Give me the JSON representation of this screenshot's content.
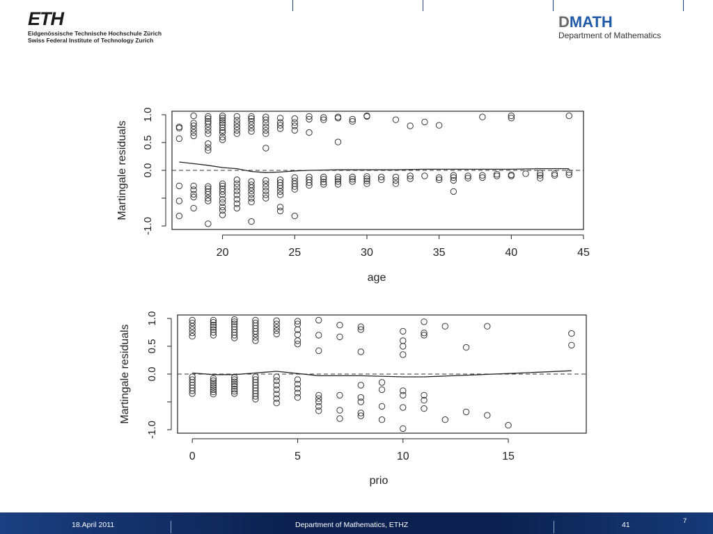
{
  "header": {
    "eth_logo": "ETH",
    "eth_line1": "Eidgenössische Technische Hochschule Zürich",
    "eth_line2": "Swiss Federal Institute of Technology Zurich",
    "dmath_d": "D",
    "dmath_rest": "MATH",
    "dmath_sub": "Department of Mathematics"
  },
  "footer": {
    "date": "18.April 2011",
    "dept": "Department of Mathematics, ETHZ",
    "slide_number": "41",
    "page": "7"
  },
  "chart_data": [
    {
      "type": "scatter",
      "xlabel": "age",
      "ylabel": "Martingale residuals",
      "xlim": [
        16.5,
        45
      ],
      "ylim": [
        -1.0,
        1.0
      ],
      "xticks": [
        20,
        25,
        30,
        35,
        40,
        45
      ],
      "yticks": [
        -1.0,
        -0.5,
        0.0,
        0.5,
        1.0
      ],
      "ytick_labels": [
        "-1.0",
        "",
        "0.0",
        "0.5",
        "1.0"
      ],
      "grid": false,
      "reference_line": {
        "y": 0,
        "style": "dashed"
      },
      "smooth_line": [
        [
          17,
          0.15
        ],
        [
          18,
          0.12
        ],
        [
          19,
          0.09
        ],
        [
          20,
          0.05
        ],
        [
          21,
          0.03
        ],
        [
          22,
          -0.02
        ],
        [
          23,
          -0.04
        ],
        [
          24,
          -0.03
        ],
        [
          25,
          -0.01
        ],
        [
          26,
          0.0
        ],
        [
          28,
          0.01
        ],
        [
          30,
          0.01
        ],
        [
          32,
          0.01
        ],
        [
          34,
          0.02
        ],
        [
          36,
          0.02
        ],
        [
          38,
          0.02
        ],
        [
          40,
          0.02
        ],
        [
          42,
          0.03
        ],
        [
          44,
          0.03
        ]
      ],
      "points": [
        [
          17,
          0.78
        ],
        [
          17,
          0.76
        ],
        [
          17,
          0.57
        ],
        [
          17,
          -0.28
        ],
        [
          17,
          -0.55
        ],
        [
          17,
          -0.82
        ],
        [
          18,
          0.98
        ],
        [
          18,
          0.85
        ],
        [
          18,
          0.8
        ],
        [
          18,
          0.74
        ],
        [
          18,
          0.68
        ],
        [
          18,
          0.62
        ],
        [
          18,
          -0.28
        ],
        [
          18,
          -0.35
        ],
        [
          18,
          -0.43
        ],
        [
          18,
          -0.48
        ],
        [
          18,
          -0.68
        ],
        [
          19,
          0.97
        ],
        [
          19,
          0.93
        ],
        [
          19,
          0.88
        ],
        [
          19,
          0.84
        ],
        [
          19,
          0.78
        ],
        [
          19,
          0.72
        ],
        [
          19,
          0.66
        ],
        [
          19,
          0.48
        ],
        [
          19,
          0.41
        ],
        [
          19,
          0.36
        ],
        [
          19,
          -0.29
        ],
        [
          19,
          -0.33
        ],
        [
          19,
          -0.38
        ],
        [
          19,
          -0.43
        ],
        [
          19,
          -0.5
        ],
        [
          19,
          -0.55
        ],
        [
          19,
          -0.96
        ],
        [
          20,
          0.98
        ],
        [
          20,
          0.94
        ],
        [
          20,
          0.9
        ],
        [
          20,
          0.86
        ],
        [
          20,
          0.82
        ],
        [
          20,
          0.77
        ],
        [
          20,
          0.72
        ],
        [
          20,
          0.68
        ],
        [
          20,
          0.6
        ],
        [
          20,
          0.55
        ],
        [
          20,
          -0.24
        ],
        [
          20,
          -0.28
        ],
        [
          20,
          -0.33
        ],
        [
          20,
          -0.38
        ],
        [
          20,
          -0.44
        ],
        [
          20,
          -0.52
        ],
        [
          20,
          -0.58
        ],
        [
          20,
          -0.66
        ],
        [
          20,
          -0.72
        ],
        [
          20,
          -0.8
        ],
        [
          21,
          0.97
        ],
        [
          21,
          0.9
        ],
        [
          21,
          0.84
        ],
        [
          21,
          0.78
        ],
        [
          21,
          0.72
        ],
        [
          21,
          0.66
        ],
        [
          21,
          -0.17
        ],
        [
          21,
          -0.24
        ],
        [
          21,
          -0.3
        ],
        [
          21,
          -0.37
        ],
        [
          21,
          -0.44
        ],
        [
          21,
          -0.52
        ],
        [
          21,
          -0.6
        ],
        [
          21,
          -0.68
        ],
        [
          22,
          0.97
        ],
        [
          22,
          0.93
        ],
        [
          22,
          0.88
        ],
        [
          22,
          0.82
        ],
        [
          22,
          0.76
        ],
        [
          22,
          0.7
        ],
        [
          22,
          -0.2
        ],
        [
          22,
          -0.26
        ],
        [
          22,
          -0.31
        ],
        [
          22,
          -0.37
        ],
        [
          22,
          -0.43
        ],
        [
          22,
          -0.5
        ],
        [
          22,
          -0.57
        ],
        [
          22,
          -0.92
        ],
        [
          23,
          0.96
        ],
        [
          23,
          0.91
        ],
        [
          23,
          0.85
        ],
        [
          23,
          0.78
        ],
        [
          23,
          0.72
        ],
        [
          23,
          0.66
        ],
        [
          23,
          0.4
        ],
        [
          23,
          -0.18
        ],
        [
          23,
          -0.24
        ],
        [
          23,
          -0.3
        ],
        [
          23,
          -0.37
        ],
        [
          23,
          -0.44
        ],
        [
          23,
          -0.5
        ],
        [
          24,
          0.94
        ],
        [
          24,
          0.86
        ],
        [
          24,
          0.81
        ],
        [
          24,
          0.75
        ],
        [
          24,
          -0.17
        ],
        [
          24,
          -0.22
        ],
        [
          24,
          -0.27
        ],
        [
          24,
          -0.32
        ],
        [
          24,
          -0.38
        ],
        [
          24,
          -0.44
        ],
        [
          24,
          -0.66
        ],
        [
          24,
          -0.73
        ],
        [
          25,
          0.93
        ],
        [
          25,
          0.86
        ],
        [
          25,
          0.8
        ],
        [
          25,
          0.72
        ],
        [
          25,
          -0.13
        ],
        [
          25,
          -0.19
        ],
        [
          25,
          -0.24
        ],
        [
          25,
          -0.29
        ],
        [
          25,
          -0.34
        ],
        [
          25,
          -0.82
        ],
        [
          26,
          0.97
        ],
        [
          26,
          0.92
        ],
        [
          26,
          0.68
        ],
        [
          26,
          -0.12
        ],
        [
          26,
          -0.17
        ],
        [
          26,
          -0.22
        ],
        [
          26,
          -0.27
        ],
        [
          27,
          0.95
        ],
        [
          27,
          0.91
        ],
        [
          27,
          -0.12
        ],
        [
          27,
          -0.16
        ],
        [
          27,
          -0.21
        ],
        [
          27,
          -0.25
        ],
        [
          28,
          0.96
        ],
        [
          28,
          0.94
        ],
        [
          28,
          0.51
        ],
        [
          28,
          -0.12
        ],
        [
          28,
          -0.16
        ],
        [
          28,
          -0.2
        ],
        [
          28,
          -0.25
        ],
        [
          29,
          0.92
        ],
        [
          29,
          0.88
        ],
        [
          29,
          -0.12
        ],
        [
          29,
          -0.16
        ],
        [
          29,
          -0.2
        ],
        [
          30,
          0.98
        ],
        [
          30,
          0.97
        ],
        [
          30,
          -0.11
        ],
        [
          30,
          -0.15
        ],
        [
          30,
          -0.19
        ],
        [
          30,
          -0.24
        ],
        [
          31,
          -0.12
        ],
        [
          31,
          -0.17
        ],
        [
          32,
          0.91
        ],
        [
          32,
          -0.12
        ],
        [
          32,
          -0.18
        ],
        [
          32,
          -0.24
        ],
        [
          33,
          0.8
        ],
        [
          33,
          -0.1
        ],
        [
          33,
          -0.15
        ],
        [
          34,
          0.87
        ],
        [
          34,
          -0.1
        ],
        [
          35,
          0.81
        ],
        [
          35,
          -0.13
        ],
        [
          35,
          -0.17
        ],
        [
          36,
          -0.09
        ],
        [
          36,
          -0.13
        ],
        [
          36,
          -0.18
        ],
        [
          36,
          -0.38
        ],
        [
          37,
          -0.1
        ],
        [
          37,
          -0.14
        ],
        [
          38,
          0.96
        ],
        [
          38,
          -0.09
        ],
        [
          38,
          -0.13
        ],
        [
          39,
          -0.07
        ],
        [
          39,
          -0.1
        ],
        [
          40,
          0.98
        ],
        [
          40,
          0.94
        ],
        [
          40,
          -0.08
        ],
        [
          40,
          -0.1
        ],
        [
          41,
          -0.06
        ],
        [
          42,
          -0.05
        ],
        [
          42,
          -0.09
        ],
        [
          42,
          -0.14
        ],
        [
          43,
          -0.06
        ],
        [
          43,
          -0.09
        ],
        [
          44,
          0.98
        ],
        [
          44,
          -0.04
        ],
        [
          44,
          -0.08
        ]
      ]
    },
    {
      "type": "scatter",
      "xlabel": "prio",
      "ylabel": "Martingale residuals",
      "xlim": [
        -0.7,
        18.7
      ],
      "ylim": [
        -1.0,
        1.0
      ],
      "xticks": [
        0,
        5,
        10,
        15
      ],
      "yticks": [
        -1.0,
        -0.5,
        0.0,
        0.5,
        1.0
      ],
      "ytick_labels": [
        "-1.0",
        "",
        "0.0",
        "0.5",
        "1.0"
      ],
      "grid": false,
      "reference_line": {
        "y": 0,
        "style": "dashed"
      },
      "smooth_line": [
        [
          0,
          0.02
        ],
        [
          1,
          -0.01
        ],
        [
          2,
          -0.01
        ],
        [
          3,
          0.02
        ],
        [
          4,
          0.05
        ],
        [
          5,
          0.01
        ],
        [
          6,
          -0.03
        ],
        [
          8,
          -0.03
        ],
        [
          10,
          -0.05
        ],
        [
          11,
          -0.05
        ],
        [
          13,
          -0.02
        ],
        [
          15,
          0.01
        ],
        [
          18,
          0.06
        ]
      ],
      "points": [
        [
          0,
          0.97
        ],
        [
          0,
          0.92
        ],
        [
          0,
          0.86
        ],
        [
          0,
          0.8
        ],
        [
          0,
          0.74
        ],
        [
          0,
          0.68
        ],
        [
          0,
          -0.05
        ],
        [
          0,
          -0.1
        ],
        [
          0,
          -0.15
        ],
        [
          0,
          -0.2
        ],
        [
          0,
          -0.25
        ],
        [
          0,
          -0.3
        ],
        [
          0,
          -0.35
        ],
        [
          1,
          0.97
        ],
        [
          1,
          0.93
        ],
        [
          1,
          0.88
        ],
        [
          1,
          0.84
        ],
        [
          1,
          0.8
        ],
        [
          1,
          0.75
        ],
        [
          1,
          0.7
        ],
        [
          1,
          -0.08
        ],
        [
          1,
          -0.12
        ],
        [
          1,
          -0.16
        ],
        [
          1,
          -0.2
        ],
        [
          1,
          -0.24
        ],
        [
          1,
          -0.28
        ],
        [
          1,
          -0.32
        ],
        [
          1,
          -0.36
        ],
        [
          2,
          0.98
        ],
        [
          2,
          0.94
        ],
        [
          2,
          0.9
        ],
        [
          2,
          0.85
        ],
        [
          2,
          0.8
        ],
        [
          2,
          0.75
        ],
        [
          2,
          0.7
        ],
        [
          2,
          0.65
        ],
        [
          2,
          -0.06
        ],
        [
          2,
          -0.1
        ],
        [
          2,
          -0.14
        ],
        [
          2,
          -0.18
        ],
        [
          2,
          -0.22
        ],
        [
          2,
          -0.27
        ],
        [
          2,
          -0.31
        ],
        [
          2,
          -0.35
        ],
        [
          3,
          0.97
        ],
        [
          3,
          0.92
        ],
        [
          3,
          0.87
        ],
        [
          3,
          0.82
        ],
        [
          3,
          0.77
        ],
        [
          3,
          0.72
        ],
        [
          3,
          0.66
        ],
        [
          3,
          0.6
        ],
        [
          3,
          -0.05
        ],
        [
          3,
          -0.1
        ],
        [
          3,
          -0.15
        ],
        [
          3,
          -0.2
        ],
        [
          3,
          -0.25
        ],
        [
          3,
          -0.3
        ],
        [
          3,
          -0.35
        ],
        [
          3,
          -0.4
        ],
        [
          3,
          -0.45
        ],
        [
          4,
          0.96
        ],
        [
          4,
          0.9
        ],
        [
          4,
          0.84
        ],
        [
          4,
          0.78
        ],
        [
          4,
          0.72
        ],
        [
          4,
          -0.05
        ],
        [
          4,
          -0.12
        ],
        [
          4,
          -0.2
        ],
        [
          4,
          -0.28
        ],
        [
          4,
          -0.36
        ],
        [
          4,
          -0.44
        ],
        [
          4,
          -0.52
        ],
        [
          5,
          0.95
        ],
        [
          5,
          0.9
        ],
        [
          5,
          0.8
        ],
        [
          5,
          0.71
        ],
        [
          5,
          0.6
        ],
        [
          5,
          0.54
        ],
        [
          5,
          -0.1
        ],
        [
          5,
          -0.18
        ],
        [
          5,
          -0.26
        ],
        [
          5,
          -0.34
        ],
        [
          5,
          -0.42
        ],
        [
          6,
          0.97
        ],
        [
          6,
          0.7
        ],
        [
          6,
          0.42
        ],
        [
          6,
          -0.38
        ],
        [
          6,
          -0.44
        ],
        [
          6,
          -0.5
        ],
        [
          6,
          -0.58
        ],
        [
          6,
          -0.66
        ],
        [
          7,
          0.88
        ],
        [
          7,
          0.67
        ],
        [
          7,
          -0.38
        ],
        [
          7,
          -0.65
        ],
        [
          7,
          -0.8
        ],
        [
          8,
          0.85
        ],
        [
          8,
          0.8
        ],
        [
          8,
          0.4
        ],
        [
          8,
          -0.2
        ],
        [
          8,
          -0.42
        ],
        [
          8,
          -0.5
        ],
        [
          8,
          -0.7
        ],
        [
          8,
          -0.75
        ],
        [
          9,
          -0.15
        ],
        [
          9,
          -0.28
        ],
        [
          9,
          -0.58
        ],
        [
          9,
          -0.82
        ],
        [
          10,
          0.77
        ],
        [
          10,
          0.6
        ],
        [
          10,
          0.5
        ],
        [
          10,
          0.35
        ],
        [
          10,
          -0.3
        ],
        [
          10,
          -0.38
        ],
        [
          10,
          -0.6
        ],
        [
          10,
          -0.98
        ],
        [
          11,
          0.94
        ],
        [
          11,
          0.74
        ],
        [
          11,
          0.7
        ],
        [
          11,
          -0.38
        ],
        [
          11,
          -0.47
        ],
        [
          11,
          -0.62
        ],
        [
          12,
          0.86
        ],
        [
          12,
          -0.82
        ],
        [
          13,
          0.48
        ],
        [
          13,
          -0.68
        ],
        [
          14,
          0.86
        ],
        [
          14,
          -0.74
        ],
        [
          15,
          -0.92
        ],
        [
          18,
          0.73
        ],
        [
          18,
          0.52
        ]
      ]
    }
  ]
}
